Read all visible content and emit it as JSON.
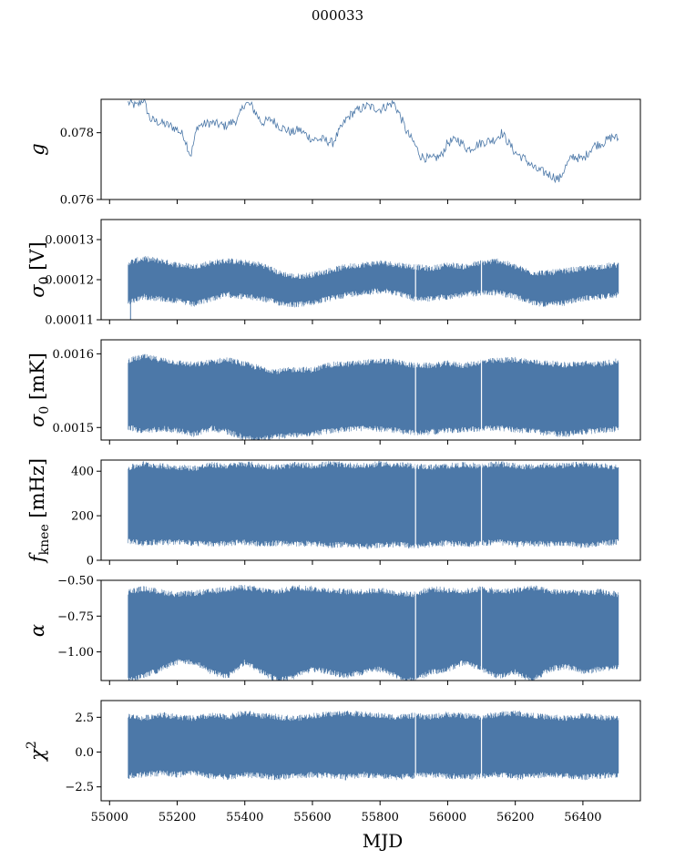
{
  "figure": {
    "title": "000033",
    "x_label": "MJD",
    "x_ticks": [
      "55000",
      "55200",
      "55400",
      "55600",
      "55800",
      "56000",
      "56200",
      "56400"
    ]
  },
  "colors": {
    "series": "#4c78a8",
    "axes": "#000000",
    "background": "#ffffff"
  },
  "chart_data": [
    {
      "type": "line",
      "panel": "gain",
      "ylabel_symbol": "g",
      "ylabel_sub": "",
      "ylabel_unit": "",
      "xlim": [
        54975,
        56570
      ],
      "ylim": [
        0.076,
        0.079
      ],
      "yticks": [
        0.076,
        0.078
      ],
      "ytick_labels": [
        "0.076",
        "0.078"
      ],
      "x": [
        55055,
        55080,
        55100,
        55120,
        55150,
        55180,
        55200,
        55220,
        55240,
        55260,
        55300,
        55340,
        55380,
        55400,
        55420,
        55450,
        55480,
        55500,
        55540,
        55560,
        55600,
        55630,
        55660,
        55700,
        55720,
        55760,
        55800,
        55840,
        55860,
        55880,
        55900,
        55920,
        55950,
        55980,
        56000,
        56030,
        56060,
        56100,
        56140,
        56160,
        56180,
        56200,
        56230,
        56260,
        56290,
        56310,
        56330,
        56350,
        56370,
        56400,
        56430,
        56460,
        56490,
        56505
      ],
      "y": [
        0.0789,
        0.0788,
        0.079,
        0.0784,
        0.0783,
        0.0782,
        0.0781,
        0.0779,
        0.0773,
        0.0782,
        0.0783,
        0.0782,
        0.0784,
        0.0789,
        0.0788,
        0.0783,
        0.0784,
        0.0782,
        0.078,
        0.0781,
        0.0778,
        0.0778,
        0.0777,
        0.0784,
        0.0786,
        0.0788,
        0.0787,
        0.0789,
        0.0785,
        0.078,
        0.0777,
        0.0773,
        0.0772,
        0.0773,
        0.0777,
        0.0778,
        0.0775,
        0.0777,
        0.0778,
        0.078,
        0.0777,
        0.0774,
        0.0772,
        0.0769,
        0.0768,
        0.0767,
        0.0766,
        0.077,
        0.0773,
        0.0772,
        0.0776,
        0.0777,
        0.0779,
        0.0778
      ]
    },
    {
      "type": "area",
      "panel": "sigma0_volts",
      "ylabel_symbol": "σ",
      "ylabel_sub": "0",
      "ylabel_unit": " [V]",
      "xlim": [
        54975,
        56570
      ],
      "ylim": [
        0.00011,
        0.000135
      ],
      "yticks": [
        0.00011,
        0.00012,
        0.00013
      ],
      "ytick_labels": [
        "0.00011",
        "0.00012",
        "0.00013"
      ],
      "x": [
        55055,
        55100,
        55150,
        55200,
        55250,
        55300,
        55350,
        55400,
        55450,
        55500,
        55550,
        55600,
        55650,
        55700,
        55750,
        55800,
        55850,
        55900,
        55950,
        56000,
        56050,
        56100,
        56150,
        56200,
        56250,
        56300,
        56350,
        56400,
        56450,
        56505
      ],
      "upper": [
        0.0001235,
        0.0001245,
        0.000124,
        0.000123,
        0.0001225,
        0.0001235,
        0.000124,
        0.0001235,
        0.000123,
        0.000121,
        0.00012,
        0.0001205,
        0.0001215,
        0.0001225,
        0.000123,
        0.0001235,
        0.000123,
        0.0001225,
        0.000122,
        0.000123,
        0.0001225,
        0.0001235,
        0.000124,
        0.0001225,
        0.000121,
        0.000121,
        0.0001215,
        0.000122,
        0.0001225,
        0.000123
      ],
      "lower": [
        0.000115,
        0.0001165,
        0.000116,
        0.0001155,
        0.0001145,
        0.000116,
        0.000117,
        0.0001165,
        0.000116,
        0.000115,
        0.0001145,
        0.000115,
        0.000116,
        0.000117,
        0.0001175,
        0.000118,
        0.0001175,
        0.000116,
        0.000116,
        0.0001165,
        0.000117,
        0.0001175,
        0.0001175,
        0.0001165,
        0.000115,
        0.0001145,
        0.000115,
        0.000116,
        0.0001165,
        0.000117
      ],
      "spike_x": 55062,
      "spike_min": 0.00011
    },
    {
      "type": "area",
      "panel": "sigma0_mK",
      "ylabel_symbol": "σ",
      "ylabel_sub": "0",
      "ylabel_unit": " [mK]",
      "xlim": [
        54975,
        56570
      ],
      "ylim": [
        0.001483,
        0.001619
      ],
      "yticks": [
        0.0015,
        0.0016
      ],
      "ytick_labels": [
        "0.0015",
        "0.0016"
      ],
      "x": [
        55055,
        55100,
        55150,
        55200,
        55250,
        55300,
        55350,
        55400,
        55450,
        55500,
        55550,
        55600,
        55650,
        55700,
        55750,
        55800,
        55850,
        55900,
        55950,
        56000,
        56050,
        56100,
        56150,
        56200,
        56250,
        56300,
        56350,
        56400,
        56450,
        56505
      ],
      "upper": [
        0.001587,
        0.001592,
        0.001588,
        0.001584,
        0.001581,
        0.001585,
        0.001588,
        0.001582,
        0.001576,
        0.001572,
        0.001575,
        0.001574,
        0.001581,
        0.001582,
        0.001584,
        0.001586,
        0.001585,
        0.00158,
        0.00158,
        0.001583,
        0.00158,
        0.001585,
        0.001587,
        0.001588,
        0.001585,
        0.001583,
        0.001581,
        0.001583,
        0.001582,
        0.001586
      ],
      "lower": [
        0.001505,
        0.001498,
        0.001503,
        0.0015,
        0.001495,
        0.001503,
        0.001498,
        0.00149,
        0.001488,
        0.001492,
        0.001494,
        0.001496,
        0.001499,
        0.001502,
        0.001503,
        0.001502,
        0.0015,
        0.001497,
        0.001498,
        0.0015,
        0.001501,
        0.001503,
        0.001503,
        0.001501,
        0.001499,
        0.001496,
        0.001495,
        0.001498,
        0.0015,
        0.001502
      ]
    },
    {
      "type": "area",
      "panel": "fknee",
      "ylabel_symbol": "f",
      "ylabel_sub": "knee",
      "ylabel_unit": " [mHz]",
      "xlim": [
        54975,
        56570
      ],
      "ylim": [
        0,
        450
      ],
      "yticks": [
        0,
        200,
        400
      ],
      "ytick_labels": [
        "0",
        "200",
        "400"
      ],
      "x": [
        55055,
        55100,
        55150,
        55200,
        55250,
        55300,
        55350,
        55400,
        55450,
        55500,
        55550,
        55600,
        55650,
        55700,
        55750,
        55800,
        55850,
        55900,
        55950,
        56000,
        56050,
        56100,
        56150,
        56200,
        56250,
        56300,
        56350,
        56400,
        56450,
        56505
      ],
      "upper": [
        400,
        420,
        410,
        405,
        400,
        415,
        410,
        420,
        410,
        405,
        415,
        410,
        420,
        415,
        410,
        420,
        415,
        410,
        405,
        410,
        415,
        410,
        420,
        410,
        405,
        415,
        410,
        420,
        410,
        405
      ],
      "lower": [
        100,
        90,
        95,
        95,
        90,
        85,
        90,
        95,
        85,
        90,
        85,
        90,
        80,
        85,
        75,
        80,
        85,
        75,
        85,
        90,
        85,
        90,
        95,
        85,
        90,
        85,
        90,
        80,
        90,
        95
      ]
    },
    {
      "type": "area",
      "panel": "alpha",
      "ylabel_symbol": "α",
      "ylabel_sub": "",
      "ylabel_unit": "",
      "xlim": [
        54975,
        56570
      ],
      "ylim": [
        -1.2,
        -0.5
      ],
      "yticks": [
        -1.0,
        -0.75,
        -0.5
      ],
      "ytick_labels": [
        "−1.00",
        "−0.75",
        "−0.50"
      ],
      "x": [
        55055,
        55100,
        55150,
        55200,
        55250,
        55300,
        55350,
        55400,
        55450,
        55500,
        55550,
        55600,
        55650,
        55700,
        55750,
        55800,
        55850,
        55900,
        55950,
        56000,
        56050,
        56100,
        56150,
        56200,
        56250,
        56300,
        56350,
        56400,
        56450,
        56505
      ],
      "upper": [
        -0.6,
        -0.58,
        -0.6,
        -0.62,
        -0.61,
        -0.6,
        -0.58,
        -0.57,
        -0.59,
        -0.6,
        -0.57,
        -0.58,
        -0.59,
        -0.6,
        -0.6,
        -0.59,
        -0.61,
        -0.62,
        -0.58,
        -0.59,
        -0.6,
        -0.58,
        -0.6,
        -0.59,
        -0.57,
        -0.6,
        -0.6,
        -0.61,
        -0.6,
        -0.62
      ],
      "lower": [
        -1.18,
        -1.15,
        -1.1,
        -1.05,
        -1.05,
        -1.12,
        -1.15,
        -1.05,
        -1.12,
        -1.18,
        -1.15,
        -1.1,
        -1.12,
        -1.15,
        -1.12,
        -1.1,
        -1.15,
        -1.18,
        -1.12,
        -1.1,
        -1.05,
        -1.1,
        -1.15,
        -1.12,
        -1.18,
        -1.1,
        -1.08,
        -1.12,
        -1.1,
        -1.08
      ]
    },
    {
      "type": "area",
      "panel": "chi2",
      "ylabel_symbol": "χ",
      "ylabel_sub": "",
      "ylabel_sup": "2",
      "ylabel_unit": "",
      "xlim": [
        54975,
        56570
      ],
      "ylim": [
        -3.5,
        3.7
      ],
      "yticks": [
        -2.5,
        0.0,
        2.5
      ],
      "ytick_labels": [
        "−2.5",
        "0.0",
        "2.5"
      ],
      "x": [
        55055,
        55100,
        55150,
        55200,
        55250,
        55300,
        55350,
        55400,
        55450,
        55500,
        55550,
        55600,
        55650,
        55700,
        55750,
        55800,
        55850,
        55900,
        55950,
        56000,
        56050,
        56100,
        56150,
        56200,
        56250,
        56300,
        56350,
        56400,
        56450,
        56505
      ],
      "upper": [
        2.4,
        2.2,
        2.5,
        2.3,
        2.2,
        2.4,
        2.3,
        2.6,
        2.4,
        2.3,
        2.2,
        2.4,
        2.5,
        2.6,
        2.5,
        2.4,
        2.3,
        2.4,
        2.3,
        2.5,
        2.4,
        2.3,
        2.5,
        2.6,
        2.4,
        2.3,
        2.2,
        2.4,
        2.3,
        2.2
      ],
      "lower": [
        -1.5,
        -1.4,
        -1.3,
        -1.4,
        -1.3,
        -1.5,
        -1.6,
        -1.4,
        -1.5,
        -1.6,
        -1.5,
        -1.4,
        -1.5,
        -1.6,
        -1.4,
        -1.5,
        -1.6,
        -1.5,
        -1.4,
        -1.5,
        -1.6,
        -1.5,
        -1.4,
        -1.6,
        -1.5,
        -1.4,
        -1.5,
        -1.6,
        -1.5,
        -1.4
      ]
    }
  ]
}
